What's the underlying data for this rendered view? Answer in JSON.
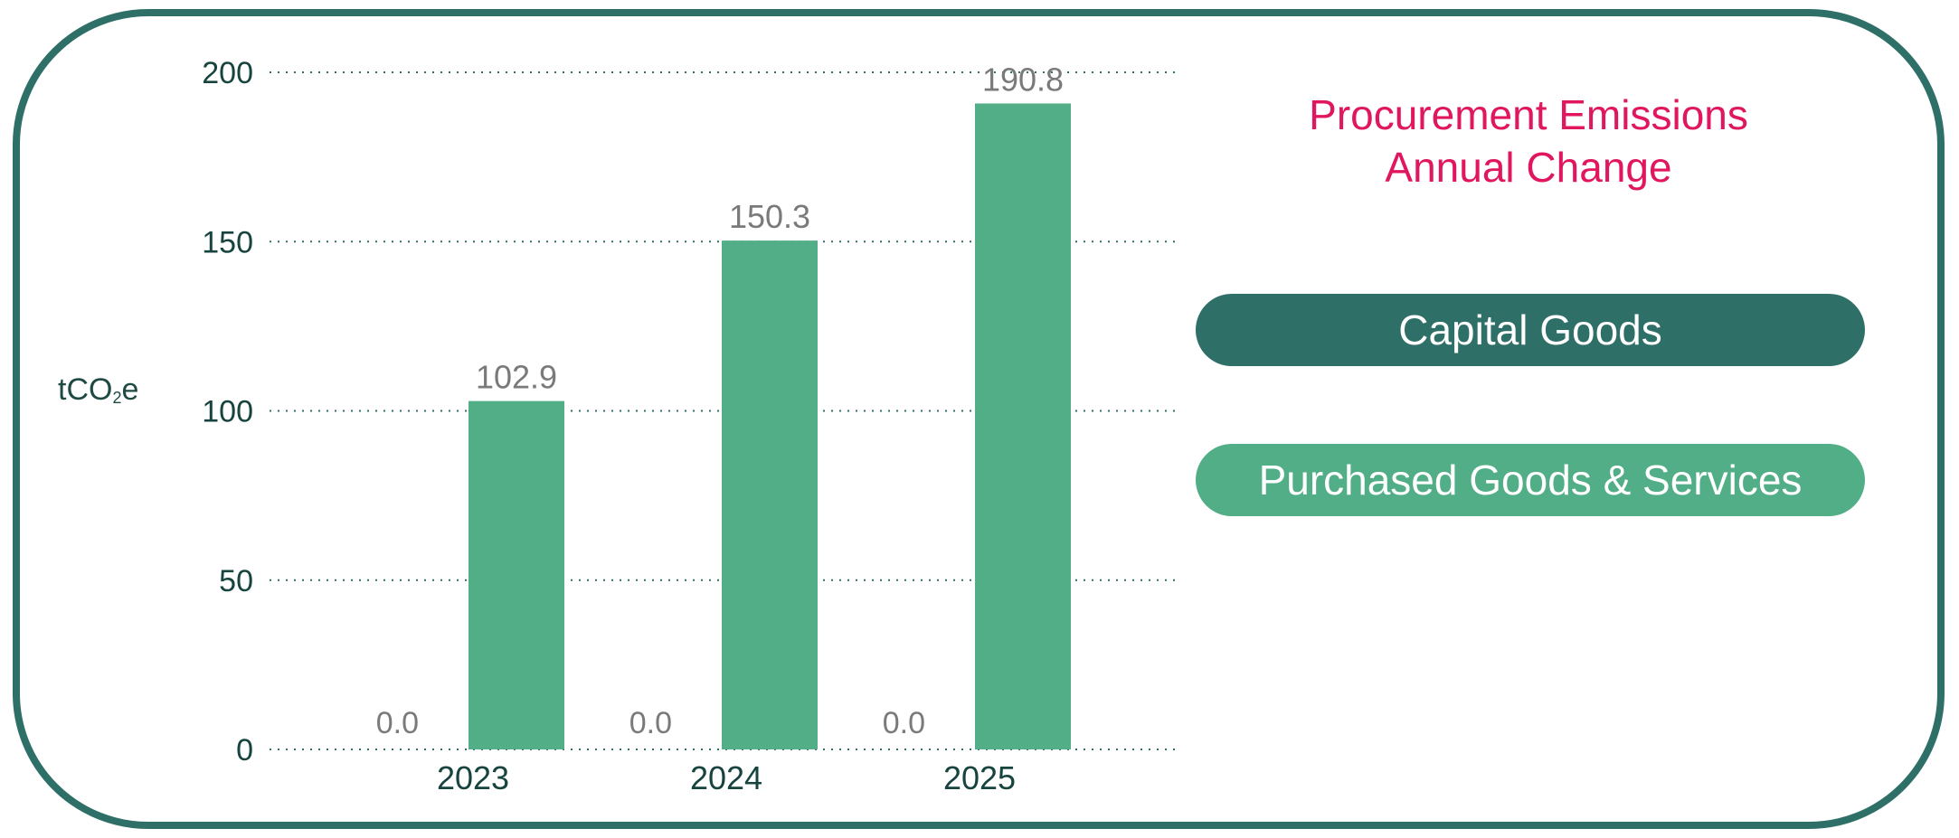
{
  "chart_data": {
    "type": "bar",
    "title_lines": [
      "Procurement Emissions",
      "Annual Change"
    ],
    "ylabel_main": "tCO",
    "ylabel_sub": "2",
    "ylabel_end": "e",
    "categories": [
      "2023",
      "2024",
      "2025"
    ],
    "ylim": [
      0,
      200
    ],
    "yticks": [
      "0",
      "50",
      "100",
      "150",
      "200"
    ],
    "grid": true,
    "legend_position": "right",
    "series": [
      {
        "name": "Capital Goods",
        "color": "#2e6f67",
        "values": [
          0.0,
          0.0,
          0.0
        ],
        "labels": [
          "0.0",
          "0.0",
          "0.0"
        ]
      },
      {
        "name": "Purchased Goods & Services",
        "color": "#52ae86",
        "values": [
          102.9,
          150.3,
          190.8
        ],
        "labels": [
          "102.9",
          "150.3",
          "190.8"
        ]
      }
    ]
  }
}
